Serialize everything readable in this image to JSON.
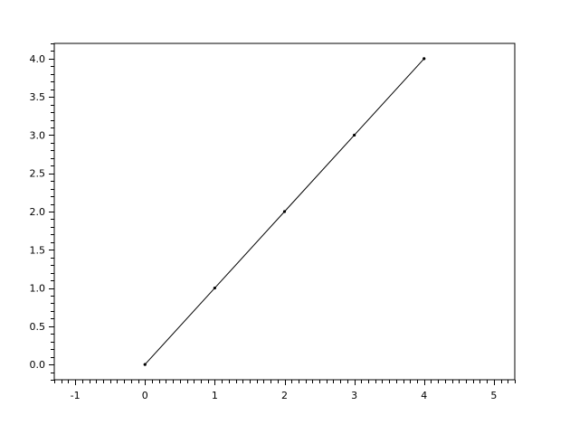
{
  "chart_data": {
    "type": "line",
    "title": "",
    "xlabel": "",
    "ylabel": "",
    "x": [
      0,
      1,
      2,
      3,
      4
    ],
    "series": [
      {
        "values": [
          0,
          1,
          2,
          3,
          4
        ],
        "color": "#000000",
        "marker": "dot"
      }
    ],
    "xlim": [
      -1.3,
      5.3
    ],
    "ylim": [
      -0.2,
      4.2
    ],
    "x_ticks": [
      -1,
      0,
      1,
      2,
      3,
      4,
      5
    ],
    "x_tick_labels": [
      "-1",
      "0",
      "1",
      "2",
      "3",
      "4",
      "5"
    ],
    "y_ticks": [
      0,
      0.5,
      1,
      1.5,
      2,
      2.5,
      3,
      3.5,
      4
    ],
    "y_tick_labels": [
      "0.0",
      "0.5",
      "1.0",
      "1.5",
      "2.0",
      "2.5",
      "3.0",
      "3.5",
      "4.0"
    ],
    "minor_tick_step": 0.1,
    "grid": false,
    "legend": "none"
  }
}
